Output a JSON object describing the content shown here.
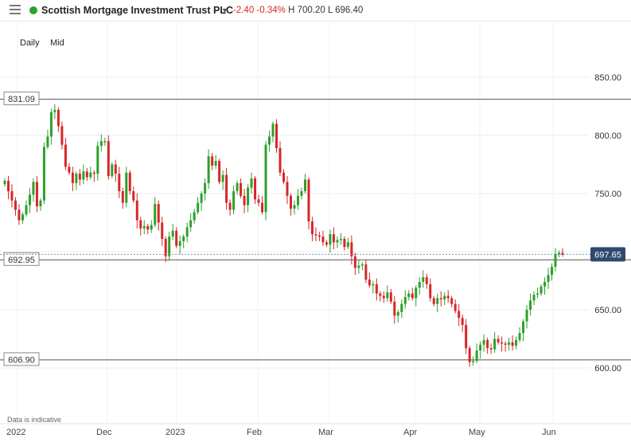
{
  "header": {
    "title": "Scottish Mortgage Investment Trust PLC",
    "change": "-2.40",
    "change_pct": "-0.34%",
    "high": "H 700.20",
    "low": "L 696.40"
  },
  "controls": {
    "interval": "Daily",
    "price_type": "Mid"
  },
  "footer_note": "Data is indicative",
  "colors": {
    "up": "#2ca02c",
    "down": "#d62728",
    "price_tag": "#2f4a6e",
    "status_dot": "#2ca02c"
  },
  "icons": {
    "menu": "hamburger-menu-icon",
    "dropdown": "chevron-down-icon",
    "status": "status-dot-icon"
  },
  "chart_data": {
    "type": "candlestick",
    "ylim": [
      578,
      878
    ],
    "y_ticks": [
      "600.00",
      "650.00",
      "700.00",
      "750.00",
      "800.00",
      "850.00"
    ],
    "x_ticks": [
      "2022",
      "Dec",
      "2023",
      "Feb",
      "Mar",
      "Apr",
      "May",
      "Jun"
    ],
    "grid": true,
    "levels": [
      {
        "label": "831.09",
        "value": 831.09
      },
      {
        "label": "692.95",
        "value": 692.95
      },
      {
        "label": "606.90",
        "value": 606.9
      }
    ],
    "last_price": {
      "label": "697.65",
      "value": 697.65
    },
    "closes": [
      761,
      752,
      744,
      736,
      727,
      732,
      740,
      749,
      760,
      739,
      744,
      790,
      799,
      820,
      822,
      808,
      792,
      773,
      768,
      759,
      767,
      762,
      769,
      764,
      768,
      767,
      791,
      795,
      795,
      765,
      775,
      767,
      752,
      742,
      768,
      752,
      744,
      727,
      720,
      722,
      719,
      723,
      741,
      725,
      711,
      696,
      713,
      718,
      705,
      709,
      713,
      721,
      727,
      734,
      742,
      750,
      759,
      782,
      774,
      778,
      760,
      766,
      742,
      736,
      752,
      759,
      748,
      740,
      755,
      763,
      745,
      742,
      734,
      792,
      799,
      810,
      789,
      768,
      760,
      748,
      737,
      740,
      748,
      752,
      762,
      726,
      715,
      714,
      713,
      708,
      706,
      715,
      708,
      710,
      711,
      704,
      708,
      696,
      686,
      688,
      689,
      676,
      671,
      672,
      664,
      662,
      660,
      665,
      657,
      645,
      648,
      655,
      661,
      664,
      660,
      669,
      674,
      678,
      672,
      660,
      655,
      660,
      659,
      662,
      660,
      655,
      649,
      643,
      637,
      617,
      605,
      606,
      615,
      620,
      624,
      617,
      616,
      625,
      622,
      621,
      620,
      622,
      619,
      624,
      630,
      640,
      650,
      658,
      663,
      664,
      670,
      674,
      680,
      687,
      698,
      699,
      697.65
    ]
  }
}
